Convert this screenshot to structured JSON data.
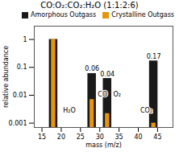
{
  "chart_data": {
    "type": "bar",
    "title": "CO:O₂:CO₂:H₂O (1:1:2:6)",
    "xlabel": "mass (m/z)",
    "ylabel": "relative abundance",
    "x": [
      18,
      28,
      32,
      44
    ],
    "series": [
      {
        "name": "Amorphous Outgass",
        "color": "#1a1a1a",
        "values": [
          1.0,
          0.06,
          0.04,
          0.17
        ],
        "value_labels": [
          null,
          "0.06",
          "0.04",
          "0.17"
        ]
      },
      {
        "name": "Crystalline Outgass",
        "color": "#E8950A",
        "values": [
          1.0,
          0.007,
          0.0022,
          0.001
        ]
      }
    ],
    "annotations": [
      {
        "text": "H₂O",
        "x": 20.5,
        "y": 0.0028
      },
      {
        "text": "CO",
        "x": 29.5,
        "y": 0.011
      },
      {
        "text": "O₂",
        "x": 33.5,
        "y": 0.011
      },
      {
        "text": "CO₂",
        "x": 40.5,
        "y": 0.0028
      }
    ],
    "xlim": [
      13,
      49
    ],
    "ylim": [
      0.0007,
      3.0
    ],
    "xticks": [
      15,
      20,
      25,
      30,
      35,
      40,
      45
    ],
    "yticks": [
      0.001,
      0.01,
      0.1,
      1
    ],
    "log": "y",
    "legend": "upper right",
    "grid": false
  }
}
